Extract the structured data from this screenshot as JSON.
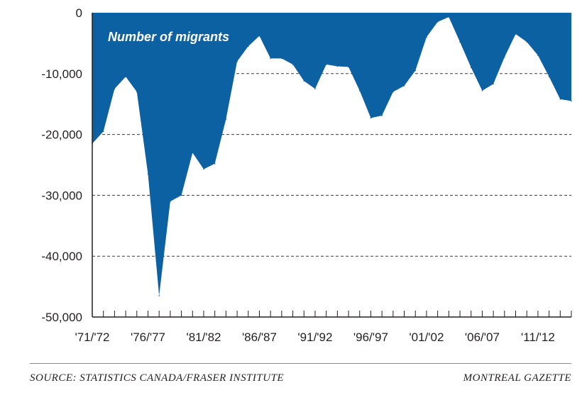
{
  "chart_data": {
    "type": "area",
    "series": [
      {
        "name": "Number of migrants",
        "values": [
          -21500,
          -19500,
          -12500,
          -10500,
          -13000,
          -26500,
          -46500,
          -31000,
          -30000,
          -23000,
          -25700,
          -24800,
          -17500,
          -8000,
          -5500,
          -3800,
          -7500,
          -7500,
          -8500,
          -11200,
          -12500,
          -8500,
          -8800,
          -8900,
          -12800,
          -17300,
          -16900,
          -13000,
          -12000,
          -9500,
          -4000,
          -1500,
          -700,
          -4800,
          -9000,
          -12800,
          -11700,
          -7300,
          -3500,
          -4800,
          -7000,
          -10500,
          -14200,
          -14500
        ]
      }
    ],
    "x_tick_labels": [
      "'71/'72",
      "'76/'77",
      "'81/'82",
      "'86/'87",
      "'91/'92",
      "'96/'97",
      "'01/'02",
      "'06/'07",
      "'11/'12"
    ],
    "y_ticks": [
      "0",
      "-10,000",
      "-20,000",
      "-30,000",
      "-40,000",
      "-50,000"
    ],
    "y_tick_values": [
      0,
      -10000,
      -20000,
      -30000,
      -40000,
      -50000
    ],
    "ylim": [
      -50000,
      0
    ],
    "grid": "dashed horizontal",
    "fill_color": "#0c61a2"
  },
  "footer": {
    "source": "SOURCE: STATISTICS CANADA/FRASER INSTITUTE",
    "publisher": "MONTREAL GAZETTE"
  }
}
